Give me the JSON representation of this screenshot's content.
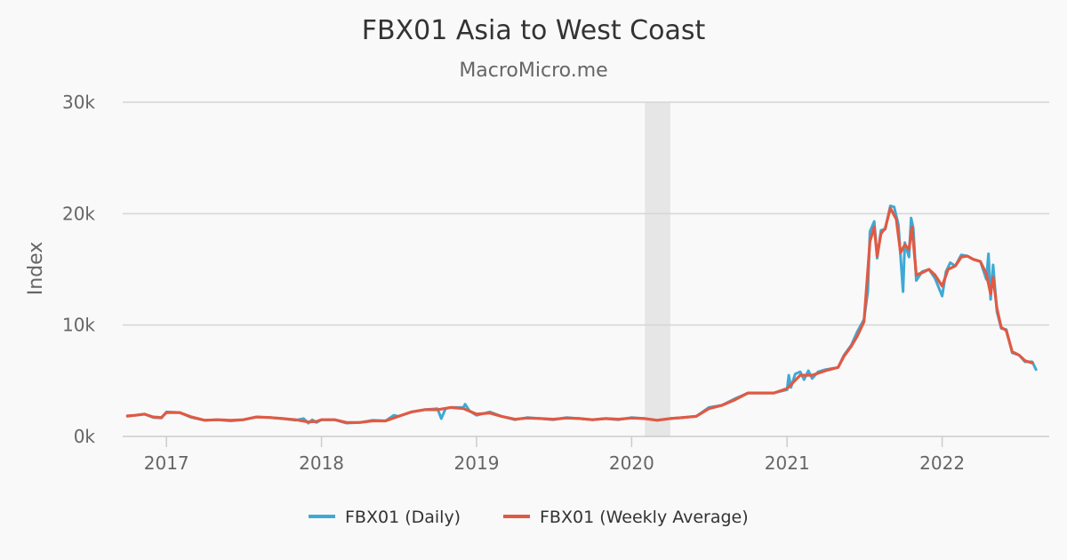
{
  "chart_data": {
    "type": "line",
    "title": "FBX01 Asia to West Coast",
    "subtitle": "MacroMicro.me",
    "ylabel": "Index",
    "xlabel": "",
    "ylim": [
      0,
      30000
    ],
    "xlim": [
      "2016-09-20",
      "2022-09-10"
    ],
    "y_ticks": [
      {
        "value": 0,
        "label": "0k"
      },
      {
        "value": 10000,
        "label": "10k"
      },
      {
        "value": 20000,
        "label": "20k"
      },
      {
        "value": 30000,
        "label": "30k"
      }
    ],
    "x_ticks": [
      {
        "value": "2017-01-01",
        "label": "2017"
      },
      {
        "value": "2018-01-01",
        "label": "2018"
      },
      {
        "value": "2019-01-01",
        "label": "2019"
      },
      {
        "value": "2020-01-01",
        "label": "2020"
      },
      {
        "value": "2021-01-01",
        "label": "2021"
      },
      {
        "value": "2022-01-01",
        "label": "2022"
      }
    ],
    "grid": true,
    "legend": "bottom-center",
    "shaded_band": {
      "start": "2020-02-01",
      "end": "2020-04-01",
      "color": "#e6e6e6"
    },
    "series": [
      {
        "name": "FBX01 (Daily)",
        "color": "#3fa9d5",
        "points": [
          [
            "2016-10-01",
            1800
          ],
          [
            "2016-10-20",
            1900
          ],
          [
            "2016-11-10",
            2000
          ],
          [
            "2016-12-01",
            1700
          ],
          [
            "2016-12-20",
            1650
          ],
          [
            "2017-01-01",
            2200
          ],
          [
            "2017-02-01",
            2150
          ],
          [
            "2017-03-01",
            1700
          ],
          [
            "2017-04-01",
            1450
          ],
          [
            "2017-05-01",
            1500
          ],
          [
            "2017-06-01",
            1400
          ],
          [
            "2017-07-01",
            1500
          ],
          [
            "2017-08-01",
            1750
          ],
          [
            "2017-09-01",
            1700
          ],
          [
            "2017-10-01",
            1600
          ],
          [
            "2017-11-01",
            1450
          ],
          [
            "2017-11-20",
            1600
          ],
          [
            "2017-12-01",
            1200
          ],
          [
            "2017-12-10",
            1500
          ],
          [
            "2017-12-20",
            1250
          ],
          [
            "2018-01-01",
            1500
          ],
          [
            "2018-02-01",
            1500
          ],
          [
            "2018-03-01",
            1200
          ],
          [
            "2018-04-01",
            1250
          ],
          [
            "2018-05-01",
            1450
          ],
          [
            "2018-06-01",
            1400
          ],
          [
            "2018-06-20",
            1900
          ],
          [
            "2018-07-01",
            1800
          ],
          [
            "2018-08-01",
            2200
          ],
          [
            "2018-09-01",
            2400
          ],
          [
            "2018-10-01",
            2500
          ],
          [
            "2018-10-10",
            1600
          ],
          [
            "2018-10-20",
            2500
          ],
          [
            "2018-11-01",
            2600
          ],
          [
            "2018-12-01",
            2600
          ],
          [
            "2018-12-05",
            2900
          ],
          [
            "2018-12-15",
            2300
          ],
          [
            "2019-01-01",
            1900
          ],
          [
            "2019-02-01",
            2200
          ],
          [
            "2019-03-01",
            1800
          ],
          [
            "2019-04-01",
            1500
          ],
          [
            "2019-05-01",
            1700
          ],
          [
            "2019-06-01",
            1600
          ],
          [
            "2019-07-01",
            1500
          ],
          [
            "2019-08-01",
            1700
          ],
          [
            "2019-09-01",
            1600
          ],
          [
            "2019-10-01",
            1500
          ],
          [
            "2019-11-01",
            1600
          ],
          [
            "2019-12-01",
            1500
          ],
          [
            "2020-01-01",
            1700
          ],
          [
            "2020-02-01",
            1600
          ],
          [
            "2020-03-01",
            1450
          ],
          [
            "2020-04-01",
            1600
          ],
          [
            "2020-05-01",
            1700
          ],
          [
            "2020-06-01",
            1800
          ],
          [
            "2020-07-01",
            2600
          ],
          [
            "2020-08-01",
            2800
          ],
          [
            "2020-09-01",
            3400
          ],
          [
            "2020-10-01",
            3900
          ],
          [
            "2020-11-01",
            3900
          ],
          [
            "2020-12-01",
            3900
          ],
          [
            "2021-01-01",
            4200
          ],
          [
            "2021-01-05",
            5500
          ],
          [
            "2021-01-10",
            4400
          ],
          [
            "2021-01-20",
            5600
          ],
          [
            "2021-02-01",
            5800
          ],
          [
            "2021-02-10",
            5100
          ],
          [
            "2021-02-20",
            5900
          ],
          [
            "2021-03-01",
            5200
          ],
          [
            "2021-03-15",
            5800
          ],
          [
            "2021-04-01",
            6000
          ],
          [
            "2021-05-01",
            6200
          ],
          [
            "2021-05-15",
            7300
          ],
          [
            "2021-06-01",
            8200
          ],
          [
            "2021-06-15",
            9400
          ],
          [
            "2021-07-01",
            10500
          ],
          [
            "2021-07-10",
            13000
          ],
          [
            "2021-07-15",
            18400
          ],
          [
            "2021-07-25",
            19300
          ],
          [
            "2021-08-01",
            16000
          ],
          [
            "2021-08-10",
            18500
          ],
          [
            "2021-08-20",
            18600
          ],
          [
            "2021-09-01",
            20700
          ],
          [
            "2021-09-10",
            20600
          ],
          [
            "2021-09-20",
            19000
          ],
          [
            "2021-09-25",
            16200
          ],
          [
            "2021-10-01",
            13000
          ],
          [
            "2021-10-05",
            17400
          ],
          [
            "2021-10-15",
            16100
          ],
          [
            "2021-10-20",
            19600
          ],
          [
            "2021-10-25",
            18700
          ],
          [
            "2021-11-01",
            14000
          ],
          [
            "2021-11-15",
            14800
          ],
          [
            "2021-12-01",
            15000
          ],
          [
            "2021-12-15",
            14200
          ],
          [
            "2022-01-01",
            12600
          ],
          [
            "2022-01-10",
            14800
          ],
          [
            "2022-01-20",
            15600
          ],
          [
            "2022-02-01",
            15300
          ],
          [
            "2022-02-15",
            16300
          ],
          [
            "2022-03-01",
            16200
          ],
          [
            "2022-03-15",
            15900
          ],
          [
            "2022-04-01",
            15700
          ],
          [
            "2022-04-15",
            14100
          ],
          [
            "2022-04-20",
            16400
          ],
          [
            "2022-04-25",
            12300
          ],
          [
            "2022-05-01",
            15400
          ],
          [
            "2022-05-10",
            11200
          ],
          [
            "2022-05-20",
            9700
          ],
          [
            "2022-06-01",
            9600
          ],
          [
            "2022-06-15",
            7500
          ],
          [
            "2022-07-01",
            7300
          ],
          [
            "2022-07-15",
            6700
          ],
          [
            "2022-08-01",
            6700
          ],
          [
            "2022-08-10",
            6000
          ]
        ]
      },
      {
        "name": "FBX01 (Weekly Average)",
        "color": "#e05a43",
        "points": [
          [
            "2016-10-01",
            1850
          ],
          [
            "2016-10-20",
            1900
          ],
          [
            "2016-11-10",
            2000
          ],
          [
            "2016-12-01",
            1750
          ],
          [
            "2016-12-20",
            1700
          ],
          [
            "2017-01-01",
            2150
          ],
          [
            "2017-02-01",
            2150
          ],
          [
            "2017-03-01",
            1750
          ],
          [
            "2017-04-01",
            1450
          ],
          [
            "2017-05-01",
            1500
          ],
          [
            "2017-06-01",
            1450
          ],
          [
            "2017-07-01",
            1500
          ],
          [
            "2017-08-01",
            1750
          ],
          [
            "2017-09-01",
            1700
          ],
          [
            "2017-10-01",
            1600
          ],
          [
            "2017-11-01",
            1500
          ],
          [
            "2017-12-01",
            1300
          ],
          [
            "2017-12-20",
            1350
          ],
          [
            "2018-01-01",
            1500
          ],
          [
            "2018-02-01",
            1500
          ],
          [
            "2018-03-01",
            1250
          ],
          [
            "2018-04-01",
            1250
          ],
          [
            "2018-05-01",
            1400
          ],
          [
            "2018-06-01",
            1400
          ],
          [
            "2018-07-01",
            1800
          ],
          [
            "2018-08-01",
            2200
          ],
          [
            "2018-09-01",
            2400
          ],
          [
            "2018-10-01",
            2400
          ],
          [
            "2018-11-01",
            2600
          ],
          [
            "2018-12-01",
            2500
          ],
          [
            "2019-01-01",
            2000
          ],
          [
            "2019-02-01",
            2100
          ],
          [
            "2019-03-01",
            1800
          ],
          [
            "2019-04-01",
            1550
          ],
          [
            "2019-05-01",
            1650
          ],
          [
            "2019-06-01",
            1600
          ],
          [
            "2019-07-01",
            1550
          ],
          [
            "2019-08-01",
            1650
          ],
          [
            "2019-09-01",
            1600
          ],
          [
            "2019-10-01",
            1500
          ],
          [
            "2019-11-01",
            1600
          ],
          [
            "2019-12-01",
            1550
          ],
          [
            "2020-01-01",
            1650
          ],
          [
            "2020-02-01",
            1600
          ],
          [
            "2020-03-01",
            1450
          ],
          [
            "2020-04-01",
            1600
          ],
          [
            "2020-05-01",
            1700
          ],
          [
            "2020-06-01",
            1800
          ],
          [
            "2020-07-01",
            2500
          ],
          [
            "2020-08-01",
            2800
          ],
          [
            "2020-09-01",
            3300
          ],
          [
            "2020-10-01",
            3900
          ],
          [
            "2020-11-01",
            3900
          ],
          [
            "2020-12-01",
            3900
          ],
          [
            "2021-01-01",
            4300
          ],
          [
            "2021-02-01",
            5500
          ],
          [
            "2021-03-01",
            5500
          ],
          [
            "2021-04-01",
            5900
          ],
          [
            "2021-05-01",
            6200
          ],
          [
            "2021-05-15",
            7200
          ],
          [
            "2021-06-01",
            8100
          ],
          [
            "2021-06-15",
            9000
          ],
          [
            "2021-07-01",
            10300
          ],
          [
            "2021-07-15",
            17500
          ],
          [
            "2021-07-25",
            18800
          ],
          [
            "2021-08-01",
            16200
          ],
          [
            "2021-08-10",
            18200
          ],
          [
            "2021-08-20",
            18700
          ],
          [
            "2021-09-01",
            20500
          ],
          [
            "2021-09-15",
            19500
          ],
          [
            "2021-09-25",
            16500
          ],
          [
            "2021-10-05",
            17200
          ],
          [
            "2021-10-15",
            16800
          ],
          [
            "2021-10-22",
            18800
          ],
          [
            "2021-11-01",
            14500
          ],
          [
            "2021-11-15",
            14700
          ],
          [
            "2021-12-01",
            15000
          ],
          [
            "2021-12-15",
            14500
          ],
          [
            "2022-01-01",
            13500
          ],
          [
            "2022-01-15",
            15000
          ],
          [
            "2022-02-01",
            15300
          ],
          [
            "2022-02-15",
            16100
          ],
          [
            "2022-03-01",
            16200
          ],
          [
            "2022-03-15",
            15900
          ],
          [
            "2022-04-01",
            15700
          ],
          [
            "2022-04-15",
            14600
          ],
          [
            "2022-04-25",
            12800
          ],
          [
            "2022-05-01",
            14300
          ],
          [
            "2022-05-10",
            11500
          ],
          [
            "2022-05-20",
            9800
          ],
          [
            "2022-06-01",
            9500
          ],
          [
            "2022-06-15",
            7600
          ],
          [
            "2022-07-01",
            7300
          ],
          [
            "2022-07-15",
            6800
          ],
          [
            "2022-08-01",
            6600
          ]
        ]
      }
    ]
  }
}
